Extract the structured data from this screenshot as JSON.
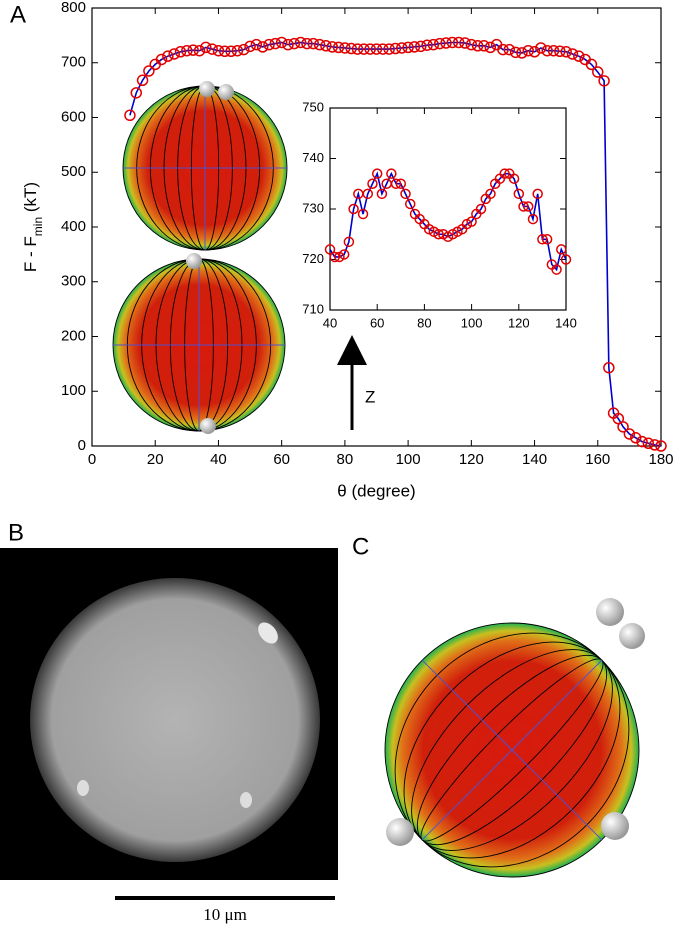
{
  "panel_labels": [
    "A",
    "B",
    "C"
  ],
  "scale_bar": "10 μm",
  "chart_data": [
    {
      "type": "line",
      "xlabel": "θ (degree)",
      "ylabel": [
        "F - F",
        "min",
        " (kT)"
      ],
      "annotations": [
        "Z"
      ],
      "xlim": [
        0,
        180
      ],
      "ylim": [
        0,
        800
      ],
      "xticks": [
        0,
        20,
        40,
        60,
        80,
        100,
        120,
        140,
        160,
        180
      ],
      "yticks": [
        0,
        100,
        200,
        300,
        400,
        500,
        600,
        700,
        800
      ],
      "x": [
        12,
        14,
        16,
        18,
        20,
        22,
        24,
        26,
        28,
        30,
        32,
        34,
        36,
        38,
        40,
        42,
        44,
        46,
        48,
        50,
        52,
        54,
        56,
        58,
        60,
        62,
        64,
        66,
        68,
        70,
        72,
        74,
        76,
        78,
        80,
        82,
        84,
        86,
        88,
        90,
        92,
        94,
        96,
        98,
        100,
        102,
        104,
        106,
        108,
        110,
        112,
        114,
        116,
        118,
        120,
        122,
        124,
        126,
        128,
        130,
        132,
        134,
        136,
        138,
        140,
        142,
        144,
        146,
        148,
        150,
        152,
        154,
        156,
        158,
        160,
        162,
        163.5,
        165,
        166.5,
        168,
        170,
        172,
        174,
        176,
        178,
        180
      ],
      "series": [
        {
          "color": "#0000cc",
          "marker_color": "#e00000",
          "values": [
            604,
            645,
            668,
            685,
            697,
            706,
            712,
            716,
            720,
            722,
            723,
            722,
            728,
            725,
            722,
            721,
            721,
            722,
            724,
            730,
            733,
            729,
            733,
            735,
            737,
            733,
            735,
            737,
            735,
            735,
            733,
            731,
            729,
            728,
            727,
            726,
            725,
            725,
            725,
            725,
            725,
            725,
            726,
            727,
            728,
            729,
            730,
            732,
            733,
            735,
            736,
            737,
            737,
            736,
            733,
            731,
            731,
            728,
            733,
            724,
            724,
            719,
            718,
            722,
            720,
            727,
            722,
            722,
            721,
            720,
            716,
            712,
            706,
            697,
            683,
            667,
            143,
            60,
            50,
            35,
            22,
            15,
            8,
            5,
            2,
            0
          ]
        }
      ]
    },
    {
      "type": "line",
      "xlim": [
        40,
        140
      ],
      "ylim": [
        710,
        750
      ],
      "xticks": [
        40,
        60,
        80,
        100,
        120,
        140
      ],
      "yticks": [
        710,
        720,
        730,
        740,
        750
      ],
      "x": [
        40,
        42,
        44,
        46,
        48,
        50,
        52,
        54,
        56,
        58,
        60,
        62,
        64,
        66,
        68,
        70,
        72,
        74,
        76,
        78,
        80,
        82,
        84,
        86,
        88,
        90,
        92,
        94,
        96,
        98,
        100,
        102,
        104,
        106,
        108,
        110,
        112,
        114,
        116,
        118,
        120,
        122,
        124,
        126,
        128,
        130,
        132,
        134,
        136,
        138,
        140
      ],
      "series": [
        {
          "color": "#0000cc",
          "marker_color": "#e00000",
          "values": [
            722,
            720.5,
            720.5,
            721,
            723.5,
            730,
            733,
            729,
            733,
            735,
            737,
            733,
            735,
            737,
            735,
            735,
            733,
            731,
            729,
            728,
            727,
            726,
            725.5,
            725,
            725,
            724.5,
            725,
            725.5,
            726,
            727,
            727.5,
            729,
            730,
            732,
            733,
            735,
            736,
            737,
            737,
            736,
            733,
            730.5,
            730.5,
            728,
            733,
            724,
            724,
            719,
            718,
            722,
            720
          ]
        }
      ]
    }
  ]
}
